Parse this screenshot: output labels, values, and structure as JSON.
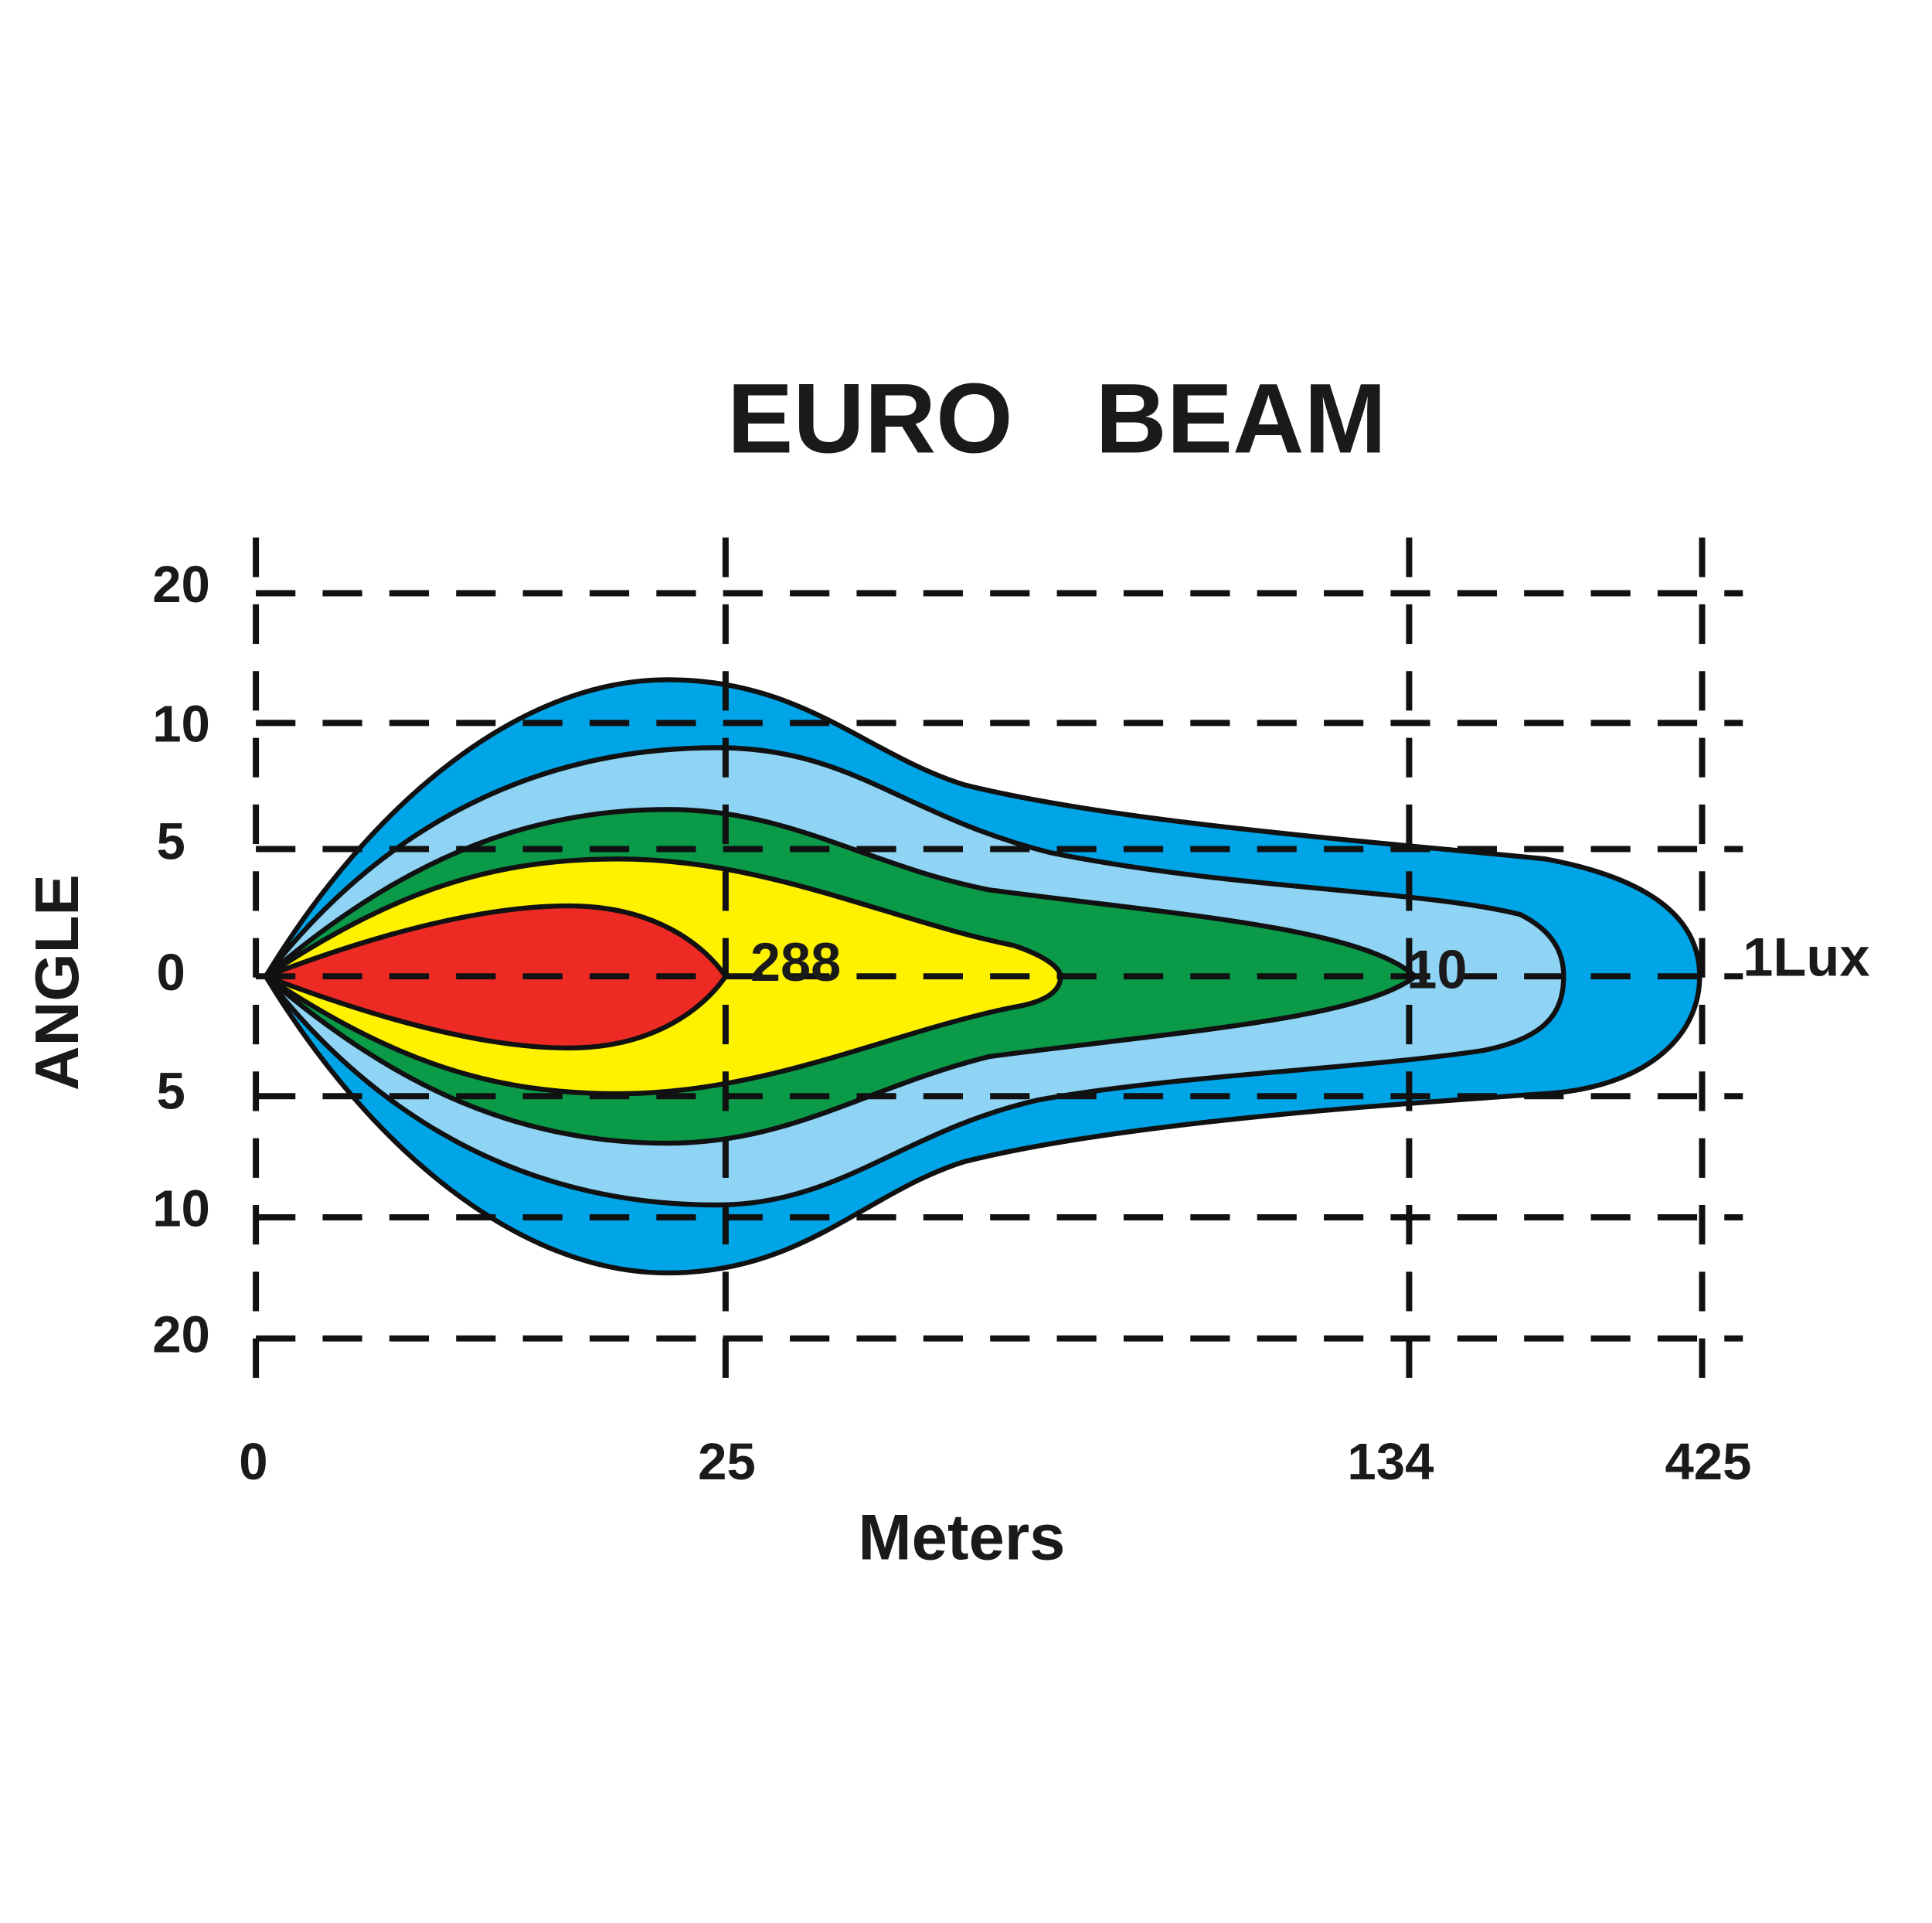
{
  "title": "EURO   BEAM",
  "y_axis": {
    "label": "ANGLE",
    "ticks": [
      "20",
      "10",
      "5",
      "0",
      "5",
      "10",
      "20"
    ]
  },
  "x_axis": {
    "label": "Meters",
    "ticks": [
      "0",
      "25",
      "134",
      "425"
    ]
  },
  "annotations": [
    "288",
    "10",
    "1Lux"
  ]
}
